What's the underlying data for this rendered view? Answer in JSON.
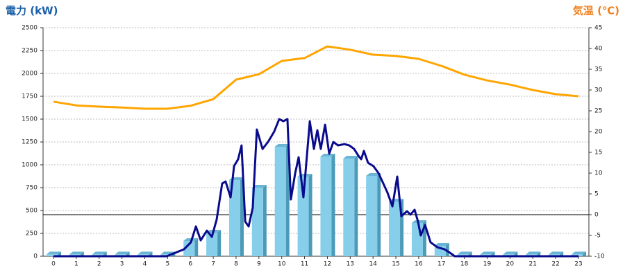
{
  "chart_data": {
    "type": "bar",
    "y_title": "電力 (kW)",
    "y2_title": "気温 (℃)",
    "y_title_color": "#1a5fa8",
    "y2_title_color": "#f08020",
    "categories": [
      "0",
      "1",
      "2",
      "3",
      "4",
      "5",
      "6",
      "7",
      "8",
      "9",
      "10",
      "11",
      "12",
      "13",
      "14",
      "15",
      "16",
      "17",
      "18",
      "19",
      "20",
      "21",
      "22",
      "23"
    ],
    "ylim": [
      0,
      2500
    ],
    "yticks": [
      0,
      250,
      500,
      750,
      1000,
      1250,
      1500,
      1750,
      2000,
      2250,
      2500
    ],
    "y2lim": [
      -10,
      45
    ],
    "y2ticks": [
      -10,
      -5,
      0,
      5,
      10,
      15,
      20,
      25,
      30,
      35,
      40,
      45
    ],
    "grid": true,
    "series": [
      {
        "type": "bar",
        "color": "#87ceeb",
        "values": [
          20,
          20,
          20,
          20,
          20,
          20,
          167,
          258,
          833,
          750,
          1197,
          871,
          1091,
          1068,
          879,
          598,
          364,
          114,
          20,
          20,
          20,
          20,
          20,
          20
        ]
      },
      {
        "type": "line",
        "color": "#0a0a8c",
        "x": [
          0,
          4.96,
          5.72,
          6.02,
          6.24,
          6.45,
          6.72,
          6.94,
          7.15,
          7.39,
          7.54,
          7.76,
          7.91,
          8.09,
          8.24,
          8.4,
          8.55,
          8.73,
          8.91,
          9.16,
          9.4,
          9.67,
          9.89,
          10.07,
          10.25,
          10.4,
          10.59,
          10.74,
          10.95,
          11.23,
          11.41,
          11.56,
          11.71,
          11.9,
          12.08,
          12.26,
          12.47,
          12.75,
          12.96,
          13.17,
          13.36,
          13.48,
          13.6,
          13.78,
          14.02,
          14.24,
          14.45,
          14.63,
          14.85,
          15.06,
          15.24,
          15.49,
          15.64,
          15.82,
          15.97,
          16.09,
          16.28,
          16.52,
          16.82,
          17.13,
          17.37,
          17.58,
          23
        ],
        "values": [
          0,
          0,
          76,
          152,
          326,
          174,
          280,
          212,
          402,
          795,
          818,
          644,
          985,
          1061,
          1212,
          379,
          326,
          530,
          1386,
          1174,
          1250,
          1364,
          1500,
          1477,
          1500,
          621,
          909,
          1083,
          644,
          1477,
          1174,
          1379,
          1174,
          1439,
          1121,
          1250,
          1212,
          1227,
          1212,
          1174,
          1098,
          1061,
          1152,
          1023,
          985,
          909,
          795,
          697,
          545,
          871,
          439,
          492,
          455,
          508,
          379,
          227,
          341,
          152,
          98,
          76,
          38,
          0,
          0
        ]
      },
      {
        "type": "line",
        "axis": "y2",
        "color": "#ffa500",
        "values": [
          27.2,
          26.3,
          26.0,
          25.8,
          25.5,
          25.5,
          26.2,
          27.8,
          32.5,
          33.8,
          37.0,
          37.7,
          40.5,
          39.7,
          38.5,
          38.2,
          37.5,
          35.8,
          33.7,
          32.3,
          31.3,
          30.0,
          29.0,
          28.5
        ]
      }
    ]
  }
}
